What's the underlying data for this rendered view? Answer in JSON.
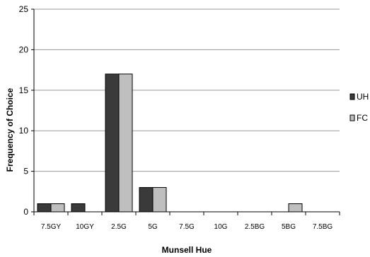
{
  "chart_data": {
    "type": "bar",
    "title": "",
    "xlabel": "Munsell Hue",
    "ylabel": "Frequency of Choice",
    "categories": [
      "7.5GY",
      "10GY",
      "2.5G",
      "5G",
      "7.5G",
      "10G",
      "2.5BG",
      "5BG",
      "7.5BG"
    ],
    "y_ticks": [
      "0",
      "5",
      "10",
      "15",
      "20",
      "25"
    ],
    "ylim": [
      0,
      25
    ],
    "grid": "horizontal",
    "legend_position": "right",
    "series": [
      {
        "name": "UH",
        "color": "#3a3a3a",
        "values": [
          1,
          1,
          17,
          3,
          0,
          0,
          0,
          0,
          0
        ]
      },
      {
        "name": "FC",
        "color": "#bfbfbf",
        "values": [
          1,
          0,
          17,
          3,
          0,
          0,
          0,
          1,
          0
        ]
      }
    ]
  }
}
